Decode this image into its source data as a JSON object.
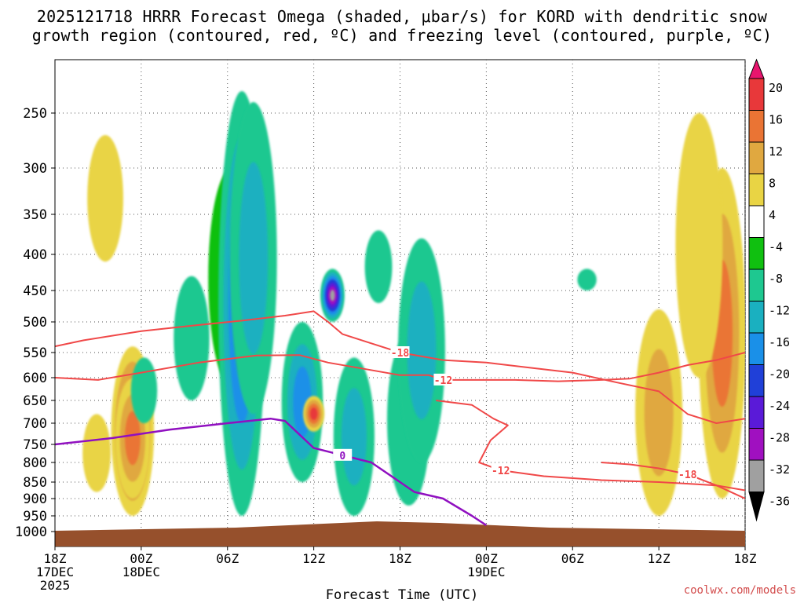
{
  "title": {
    "line1": "2025121718 HRRR Forecast Omega (shaded, μbar/s) for KORD with dendritic snow",
    "line2": "growth region (contoured, red, ºC) and freezing level (contoured, purple, ºC)"
  },
  "watermark": "coolwx.com/models",
  "chart_data": {
    "type": "heatmap",
    "title": "2025121718 HRRR Forecast Omega (shaded, μbar/s) for KORD with dendritic snow growth region (contoured, red, ºC) and freezing level (contoured, purple, ºC)",
    "xlabel": "Forecast Time (UTC)",
    "ylabel": "",
    "x_range_hours": [
      0,
      48
    ],
    "y_range_hpa": [
      1000,
      200
    ],
    "x_ticks": [
      {
        "hour": 0,
        "lines": [
          "18Z",
          "17DEC",
          "2025"
        ]
      },
      {
        "hour": 6,
        "lines": [
          "00Z",
          "18DEC"
        ]
      },
      {
        "hour": 12,
        "lines": [
          "06Z"
        ]
      },
      {
        "hour": 18,
        "lines": [
          "12Z"
        ]
      },
      {
        "hour": 24,
        "lines": [
          "18Z"
        ]
      },
      {
        "hour": 30,
        "lines": [
          "00Z",
          "19DEC"
        ]
      },
      {
        "hour": 36,
        "lines": [
          "06Z"
        ]
      },
      {
        "hour": 42,
        "lines": [
          "12Z"
        ]
      },
      {
        "hour": 48,
        "lines": [
          "18Z"
        ]
      }
    ],
    "y_ticks": [
      250,
      300,
      350,
      400,
      450,
      500,
      550,
      600,
      650,
      700,
      750,
      800,
      850,
      900,
      950,
      1000
    ],
    "colorbar": {
      "labels": [
        "20",
        "16",
        "12",
        "8",
        "4",
        "-4",
        "-8",
        "-12",
        "-16",
        "-20",
        "-24",
        "-28",
        "-32",
        "-36"
      ],
      "colors": [
        "#e8156e",
        "#e8383a",
        "#ea7434",
        "#e0a840",
        "#e9d444",
        "#ffffff",
        "#10c010",
        "#1ec890",
        "#1ab0c0",
        "#1a90e8",
        "#2040d8",
        "#5a1ad8",
        "#a010c0",
        "#a0a0a0",
        "#000000"
      ]
    },
    "omega_regions": [
      {
        "hour": 3.5,
        "p_top": 270,
        "p_bot": 410,
        "value": 4
      },
      {
        "hour": 5.4,
        "p_top": 540,
        "p_bot": 950,
        "value": 20
      },
      {
        "hour": 5.4,
        "p_top": 600,
        "p_bot": 900,
        "value": 12
      },
      {
        "hour": 2.9,
        "p_top": 680,
        "p_bot": 880,
        "value": 4
      },
      {
        "hour": 6.2,
        "p_top": 560,
        "p_bot": 700,
        "value": -8
      },
      {
        "hour": 9.5,
        "p_top": 430,
        "p_bot": 650,
        "value": -8
      },
      {
        "hour": 12.3,
        "p_top": 300,
        "p_bot": 620,
        "value": -4
      },
      {
        "hour": 13.0,
        "p_top": 230,
        "p_bot": 950,
        "value": -20
      },
      {
        "hour": 13.8,
        "p_top": 240,
        "p_bot": 680,
        "value": -12
      },
      {
        "hour": 17.2,
        "p_top": 500,
        "p_bot": 850,
        "value": -16
      },
      {
        "hour": 18.0,
        "p_top": 640,
        "p_bot": 720,
        "value": 16
      },
      {
        "hour": 19.3,
        "p_top": 420,
        "p_bot": 500,
        "value": -32
      },
      {
        "hour": 20.8,
        "p_top": 560,
        "p_bot": 950,
        "value": -12
      },
      {
        "hour": 22.5,
        "p_top": 370,
        "p_bot": 470,
        "value": -8
      },
      {
        "hour": 24.6,
        "p_top": 520,
        "p_bot": 920,
        "value": -8
      },
      {
        "hour": 25.5,
        "p_top": 380,
        "p_bot": 800,
        "value": -12
      },
      {
        "hour": 37.0,
        "p_top": 420,
        "p_bot": 450,
        "value": -8
      },
      {
        "hour": 42.0,
        "p_top": 480,
        "p_bot": 950,
        "value": 8
      },
      {
        "hour": 46.4,
        "p_top": 300,
        "p_bot": 900,
        "value": 12
      },
      {
        "hour": 44.8,
        "p_top": 250,
        "p_bot": 600,
        "value": 4
      }
    ],
    "series": [
      {
        "name": "Dendritic -12C",
        "color": "#f04848",
        "label": "-12",
        "points": [
          [
            0,
            600
          ],
          [
            3,
            605
          ],
          [
            6,
            590
          ],
          [
            10,
            570
          ],
          [
            14,
            556
          ],
          [
            17,
            555
          ],
          [
            19,
            570
          ],
          [
            21,
            580
          ],
          [
            24,
            595
          ],
          [
            26,
            595
          ],
          [
            27,
            605
          ],
          [
            29,
            605
          ],
          [
            32,
            605
          ],
          [
            35,
            608
          ],
          [
            38,
            605
          ],
          [
            40,
            602
          ],
          [
            42,
            590
          ],
          [
            44,
            575
          ],
          [
            46,
            565
          ],
          [
            48,
            550
          ]
        ]
      },
      {
        "name": "Dendritic -12C (lower)",
        "color": "#f04848",
        "label": "-12",
        "points": [
          [
            26.5,
            650
          ],
          [
            29,
            660
          ],
          [
            30.5,
            690
          ],
          [
            31.5,
            705
          ],
          [
            30.3,
            740
          ],
          [
            29.5,
            800
          ],
          [
            31,
            820
          ],
          [
            34,
            835
          ],
          [
            38,
            845
          ],
          [
            42,
            850
          ],
          [
            46,
            860
          ],
          [
            48,
            875
          ]
        ]
      },
      {
        "name": "Dendritic -18C",
        "color": "#f04848",
        "label": "-18",
        "points": [
          [
            0,
            540
          ],
          [
            2,
            530
          ],
          [
            6,
            515
          ],
          [
            10,
            505
          ],
          [
            13,
            498
          ],
          [
            16,
            490
          ],
          [
            18,
            483
          ],
          [
            19,
            500
          ],
          [
            20,
            520
          ],
          [
            22,
            535
          ],
          [
            24,
            550
          ],
          [
            27,
            565
          ],
          [
            30,
            570
          ],
          [
            33,
            580
          ],
          [
            36,
            590
          ],
          [
            39,
            610
          ],
          [
            42,
            630
          ],
          [
            44,
            680
          ],
          [
            46,
            700
          ],
          [
            48,
            690
          ]
        ]
      },
      {
        "name": "Dendritic -18C (lower)",
        "color": "#f04848",
        "label": "-18",
        "points": [
          [
            38,
            800
          ],
          [
            40,
            805
          ],
          [
            42,
            815
          ],
          [
            44,
            830
          ],
          [
            46,
            860
          ],
          [
            48,
            900
          ]
        ]
      },
      {
        "name": "Freezing level 0C",
        "color": "#9010c0",
        "label": "0",
        "points": [
          [
            0,
            750
          ],
          [
            4,
            735
          ],
          [
            8,
            715
          ],
          [
            12,
            700
          ],
          [
            15,
            690
          ],
          [
            16,
            695
          ],
          [
            18,
            760
          ],
          [
            20,
            780
          ],
          [
            22,
            800
          ],
          [
            24,
            850
          ],
          [
            25,
            880
          ],
          [
            27,
            900
          ],
          [
            29,
            950
          ],
          [
            30,
            980
          ]
        ]
      }
    ]
  }
}
